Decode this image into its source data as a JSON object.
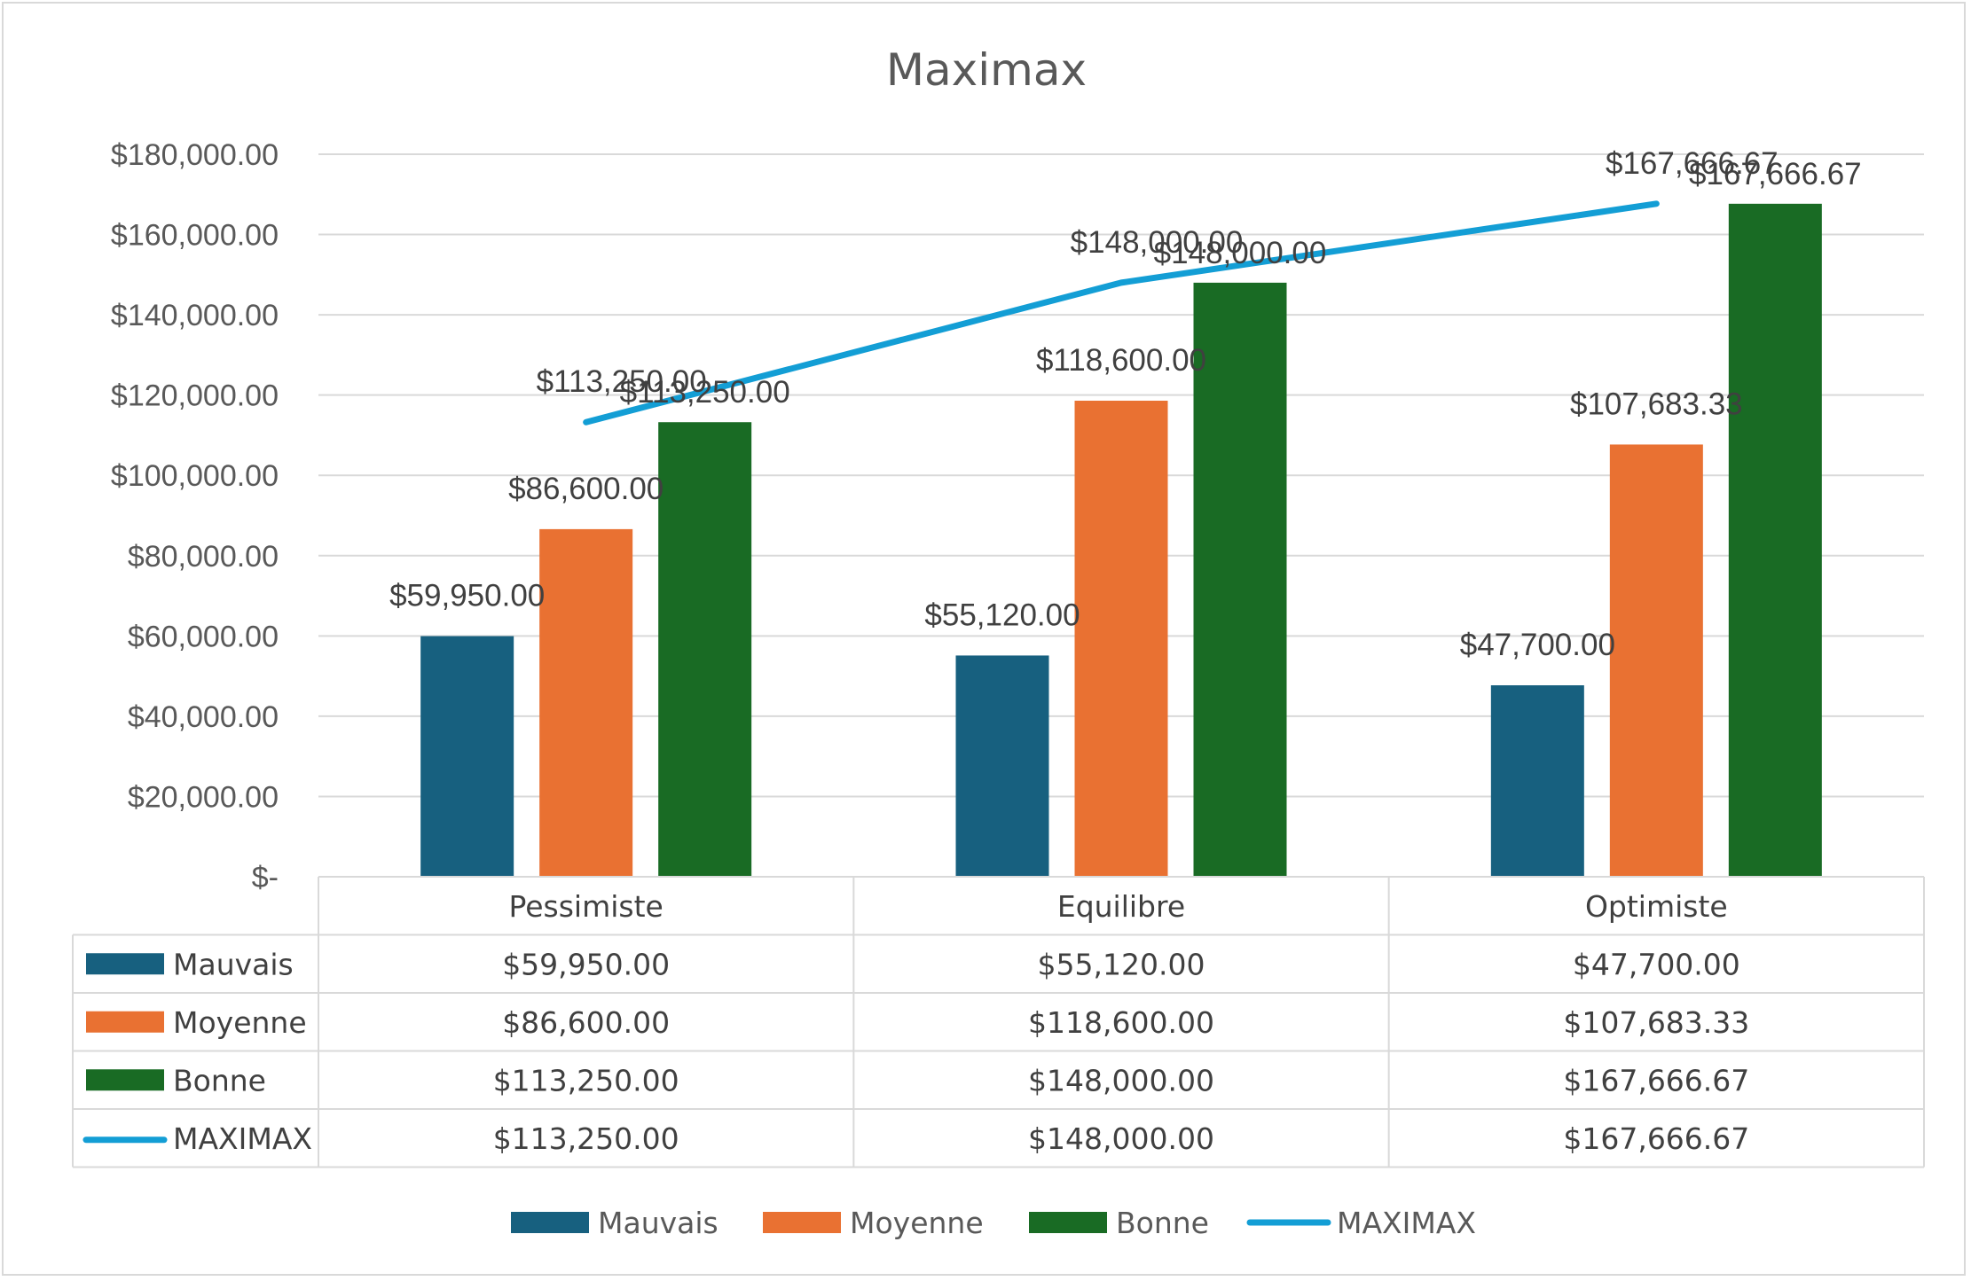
{
  "chart_data": {
    "type": "bar",
    "title": "Maximax",
    "categories": [
      "Pessimiste",
      "Equilibre",
      "Optimiste"
    ],
    "ylim": [
      0,
      180000
    ],
    "ytick_values": [
      0,
      20000,
      40000,
      60000,
      80000,
      100000,
      120000,
      140000,
      160000,
      180000
    ],
    "ytick_labels": [
      "$-",
      "$20,000.00",
      "$40,000.00",
      "$60,000.00",
      "$80,000.00",
      "$100,000.00",
      "$120,000.00",
      "$140,000.00",
      "$160,000.00",
      "$180,000.00"
    ],
    "grid": true,
    "legend_position": "bottom",
    "series": [
      {
        "name": "Mauvais",
        "type": "bar",
        "color": "#17607f",
        "values": [
          59950,
          55120,
          47700
        ],
        "labels": [
          "$59,950.00",
          "$55,120.00",
          "$47,700.00"
        ]
      },
      {
        "name": "Moyenne",
        "type": "bar",
        "color": "#e97132",
        "values": [
          86600,
          118600,
          107683.33
        ],
        "labels": [
          "$86,600.00",
          "$118,600.00",
          "$107,683.33"
        ]
      },
      {
        "name": "Bonne",
        "type": "bar",
        "color": "#196b24",
        "values": [
          113250,
          148000,
          167666.67
        ],
        "labels": [
          "$113,250.00",
          "$148,000.00",
          "$167,666.67"
        ]
      },
      {
        "name": "MAXIMAX",
        "type": "line",
        "color": "#139ed5",
        "values": [
          113250,
          148000,
          167666.67
        ],
        "labels": [
          "$113,250.00",
          "$148,000.00",
          "$167,666.67"
        ]
      }
    ]
  }
}
